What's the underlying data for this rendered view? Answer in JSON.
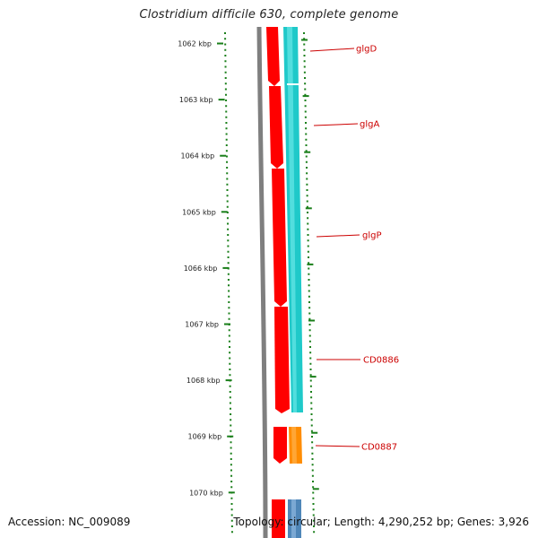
{
  "header": {
    "title": "Clostridium difficile 630, complete genome"
  },
  "footer": {
    "accession": "Accession: NC_009089",
    "summary": "Topology: circular; Length: 4,290,252 bp; Genes: 3,926"
  },
  "colors": {
    "backbone": "#7f7f7f",
    "cds_reverse": "#ff0000",
    "cds_forward_track": "#1fc9c9",
    "orange_feature": "#ff8c00",
    "blue_feature": "#4f86b8",
    "tick": "#1a7f1a",
    "gene_label": "#cc0000"
  },
  "scale": {
    "unit": "kbp",
    "labels": [
      "1062 kbp",
      "1063 kbp",
      "1064 kbp",
      "1065 kbp",
      "1066 kbp",
      "1067 kbp",
      "1068 kbp",
      "1069 kbp",
      "1070 kbp"
    ]
  },
  "genes": [
    {
      "name": "glgD"
    },
    {
      "name": "glgA"
    },
    {
      "name": "glgP"
    },
    {
      "name": "CD0886"
    },
    {
      "name": "CD0887"
    }
  ]
}
